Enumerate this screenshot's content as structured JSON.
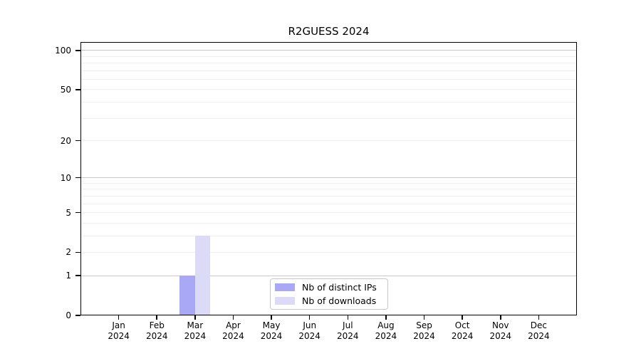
{
  "title": "R2GUESS 2024",
  "chart_data": {
    "type": "bar",
    "title": "R2GUESS 2024",
    "categories": [
      "Jan",
      "Feb",
      "Mar",
      "Apr",
      "May",
      "Jun",
      "Jul",
      "Aug",
      "Sep",
      "Oct",
      "Nov",
      "Dec"
    ],
    "year_label": "2024",
    "series": [
      {
        "name": "Nb of distinct IPs",
        "color": "#a8a8f5",
        "values": [
          0,
          0,
          1,
          0,
          0,
          0,
          0,
          0,
          0,
          0,
          0,
          0
        ]
      },
      {
        "name": "Nb of downloads",
        "color": "#dbdbf8",
        "values": [
          0,
          0,
          3,
          0,
          0,
          0,
          0,
          0,
          0,
          0,
          0,
          0
        ]
      }
    ],
    "xlabel": "",
    "ylabel": "",
    "yscale": "log1p",
    "ylim": [
      0,
      116
    ],
    "yticks": [
      0,
      1,
      2,
      5,
      10,
      20,
      50,
      100
    ],
    "major_gridlines": [
      1,
      10,
      100
    ],
    "minor_gridlines": [
      2,
      3,
      4,
      5,
      6,
      7,
      8,
      9,
      20,
      30,
      40,
      50,
      60,
      70,
      80,
      90
    ],
    "grid": "horizontal",
    "legend_position": "lower-center",
    "colors": {
      "major_grid": "#c8c8c8",
      "minor_grid": "#efefef",
      "axis": "#000000",
      "background": "#ffffff"
    }
  }
}
